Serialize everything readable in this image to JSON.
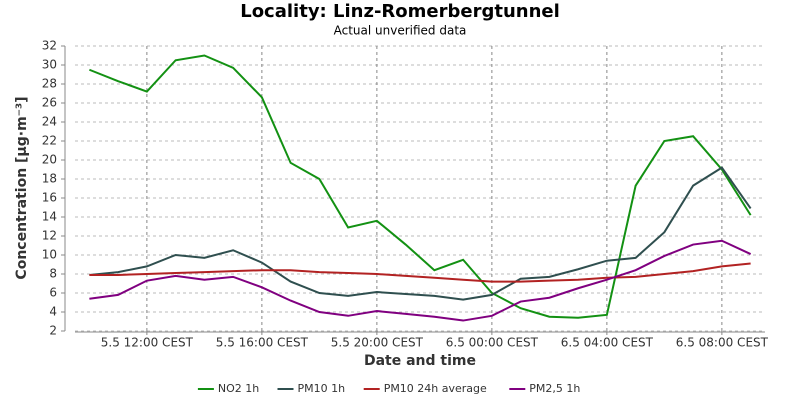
{
  "chart_data": {
    "type": "line",
    "title": "Locality: Linz-Romerbergtunnel",
    "subtitle": "Actual unverified data",
    "x_label": "Date and time",
    "y_label": "Concentration [µg·m⁻³]",
    "x": [
      10,
      11,
      12,
      13,
      14,
      15,
      16,
      17,
      18,
      19,
      20,
      21,
      22,
      23,
      24,
      25,
      26,
      27,
      28,
      29,
      30,
      31,
      32,
      33
    ],
    "xlim": [
      9.5,
      33.5
    ],
    "xticks": [
      {
        "value": 12,
        "label": "5.5 12:00 CEST"
      },
      {
        "value": 16,
        "label": "5.5 16:00 CEST"
      },
      {
        "value": 20,
        "label": "5.5 20:00 CEST"
      },
      {
        "value": 24,
        "label": "6.5 00:00 CEST"
      },
      {
        "value": 28,
        "label": "6.5 04:00 CEST"
      },
      {
        "value": 32,
        "label": "6.5 08:00 CEST"
      }
    ],
    "ylim": [
      2,
      32
    ],
    "yticks": [
      2,
      4,
      6,
      8,
      10,
      12,
      14,
      16,
      18,
      20,
      22,
      24,
      26,
      28,
      30,
      32
    ],
    "grid": true,
    "legend": "bottom",
    "series": [
      {
        "name": "NO2 1h",
        "color": "#139113",
        "values": [
          29.5,
          28.3,
          27.2,
          30.5,
          31.0,
          29.7,
          26.6,
          19.7,
          18.0,
          12.9,
          13.6,
          11.1,
          8.4,
          9.5,
          6.0,
          4.4,
          3.5,
          3.4,
          3.7,
          17.3,
          22.0,
          22.5,
          19.0,
          14.2
        ]
      },
      {
        "name": "PM10 1h",
        "color": "#2f4f4f",
        "values": [
          7.9,
          8.2,
          8.8,
          10.0,
          9.7,
          10.5,
          9.2,
          7.2,
          6.0,
          5.7,
          6.1,
          5.9,
          5.7,
          5.3,
          5.8,
          7.5,
          7.7,
          8.5,
          9.4,
          9.7,
          12.4,
          17.3,
          19.2,
          14.9
        ]
      },
      {
        "name": "PM10 24h average",
        "color": "#b22222",
        "values": [
          7.9,
          7.9,
          8.0,
          8.1,
          8.2,
          8.3,
          8.4,
          8.4,
          8.2,
          8.1,
          8.0,
          7.8,
          7.6,
          7.4,
          7.2,
          7.2,
          7.3,
          7.4,
          7.6,
          7.7,
          8.0,
          8.3,
          8.8,
          9.1
        ]
      },
      {
        "name": "PM2,5 1h",
        "color": "#800080",
        "values": [
          5.4,
          5.8,
          7.3,
          7.8,
          7.4,
          7.7,
          6.6,
          5.2,
          4.0,
          3.6,
          4.1,
          3.8,
          3.5,
          3.1,
          3.6,
          5.1,
          5.5,
          6.5,
          7.4,
          8.4,
          9.9,
          11.1,
          11.5,
          10.1
        ]
      }
    ]
  }
}
